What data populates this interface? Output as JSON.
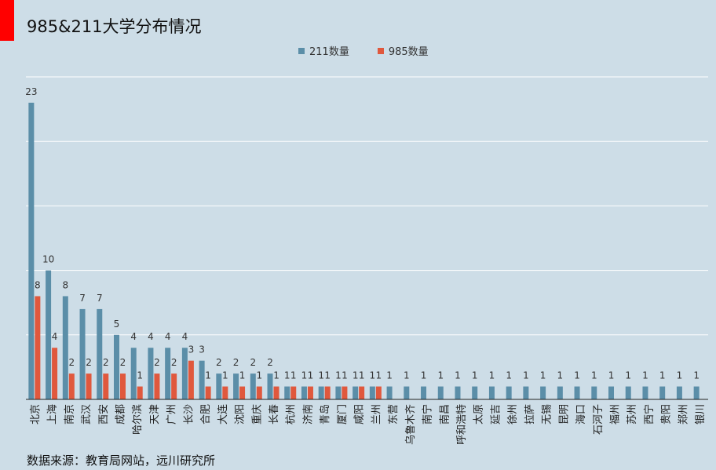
{
  "title": "985&211大学分布情况",
  "source": "数据来源：教育局网站，远川研究所",
  "colors": {
    "s211": "#5b8ea8",
    "s985": "#e0583d",
    "accent": "#ff0000",
    "background": "#cddde7",
    "gridline": "#ffffff"
  },
  "chart_data": {
    "type": "bar",
    "title": "985&211大学分布情况",
    "legend_position": "top",
    "grid": true,
    "ylim": [
      0,
      23
    ],
    "categories": [
      "北京",
      "上海",
      "南京",
      "武汉",
      "西安",
      "成都",
      "哈尔滨",
      "天津",
      "广州",
      "长沙",
      "合肥",
      "大连",
      "沈阳",
      "重庆",
      "长春",
      "杭州",
      "济南",
      "青岛",
      "厦门",
      "咸阳",
      "兰州",
      "东营",
      "乌鲁木齐",
      "南宁",
      "南昌",
      "呼和浩特",
      "太原",
      "延吉",
      "徐州",
      "拉萨",
      "无锡",
      "昆明",
      "海口",
      "石河子",
      "福州",
      "苏州",
      "西宁",
      "贵阳",
      "郑州",
      "银川"
    ],
    "series": [
      {
        "name": "211数量",
        "values": [
          23,
          10,
          8,
          7,
          7,
          5,
          4,
          4,
          4,
          4,
          3,
          2,
          2,
          2,
          2,
          1,
          1,
          1,
          1,
          1,
          1,
          1,
          1,
          1,
          1,
          1,
          1,
          1,
          1,
          1,
          1,
          1,
          1,
          1,
          1,
          1,
          1,
          1,
          1,
          1
        ]
      },
      {
        "name": "985数量",
        "values": [
          8,
          4,
          2,
          2,
          2,
          2,
          1,
          2,
          2,
          3,
          1,
          1,
          1,
          1,
          1,
          1,
          1,
          1,
          1,
          1,
          1,
          null,
          null,
          null,
          null,
          null,
          null,
          null,
          null,
          null,
          null,
          null,
          null,
          null,
          null,
          null,
          null,
          null,
          null,
          null
        ]
      }
    ]
  }
}
